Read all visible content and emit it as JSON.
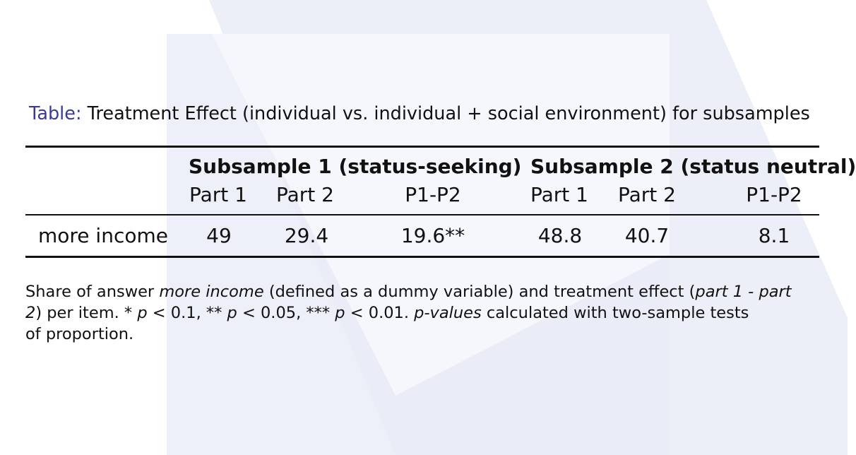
{
  "caption": {
    "label": "Table:",
    "text": "Treatment Effect (individual vs. individual + social environment) for subsamples"
  },
  "table": {
    "groups": [
      {
        "label": "Subsample 1 (status-seeking)"
      },
      {
        "label": "Subsample 2 (status neutral)"
      }
    ],
    "subheaders": [
      "Part 1",
      "Part 2",
      "P1-P2",
      "Part 1",
      "Part 2",
      "P1-P2"
    ],
    "rows": [
      {
        "label": "more income",
        "values": [
          "49",
          "29.4",
          "19.6**",
          "48.8",
          "40.7",
          "8.1"
        ]
      }
    ]
  },
  "note": {
    "line1_a": "Share of answer ",
    "line1_b": "more income",
    "line1_c": " (defined as a dummy variable) and treatment effect (",
    "line1_d": "part 1 - part",
    "line2_a": "2",
    "line2_b": ") per item. * ",
    "line2_c": "p",
    "line2_d": " < 0.1, ** ",
    "line2_e": "p",
    "line2_f": " < 0.05, *** ",
    "line2_g": "p",
    "line2_h": " < 0.01. ",
    "line2_i": "p-values",
    "line2_j": " calculated with two-sample tests",
    "line3": "of proportion."
  },
  "colors": {
    "caption_label": "#3b3b8f",
    "watermark": "#eef0f9"
  }
}
